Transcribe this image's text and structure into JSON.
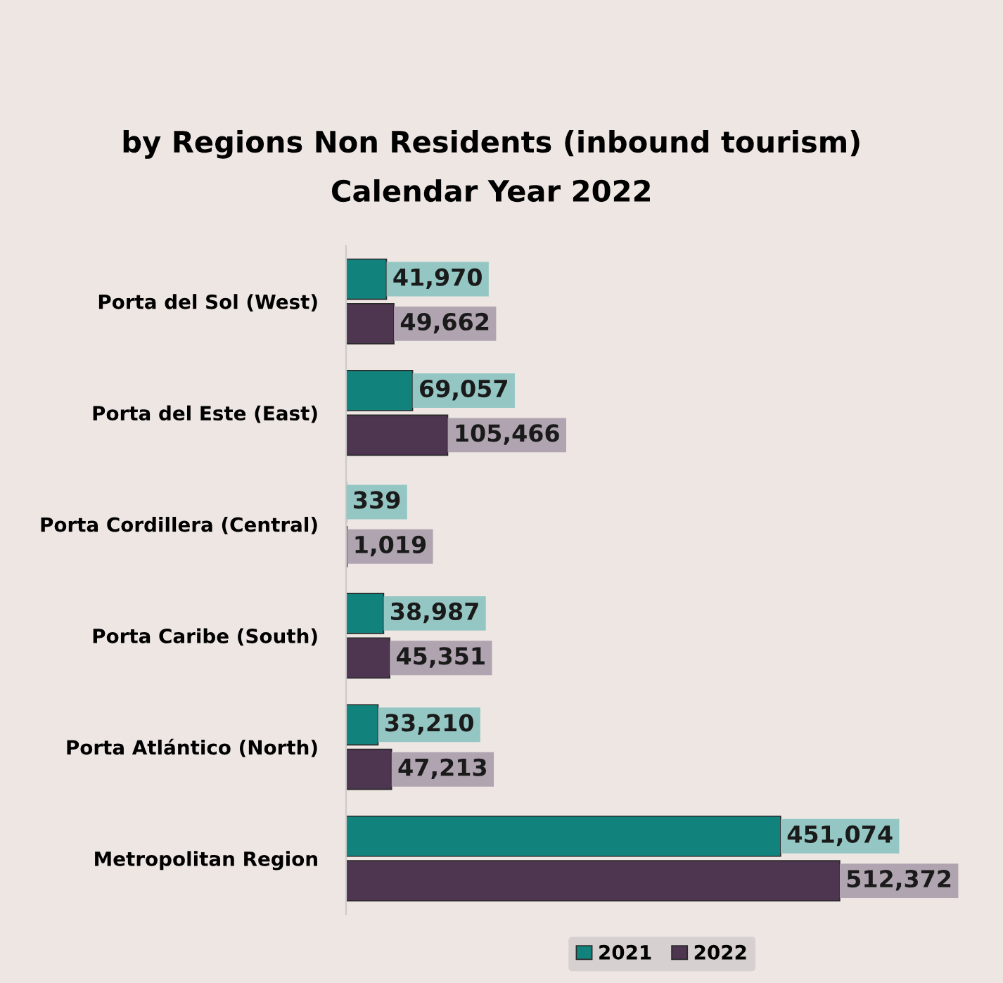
{
  "chart_data": {
    "type": "bar",
    "orientation": "horizontal",
    "title": "by Regions Non Residents (inbound tourism)",
    "subtitle": "Calendar Year 2022",
    "categories": [
      "Porta del Sol (West)",
      "Porta del Este (East)",
      "Porta Cordillera (Central)",
      "Porta Caribe (South)",
      "Porta Atlántico (North)",
      "Metropolitan Region"
    ],
    "series": [
      {
        "name": "2021",
        "color": "#12827c",
        "values": [
          41970,
          69057,
          339,
          38987,
          33210,
          451074
        ],
        "value_labels": [
          "41,970",
          "69,057",
          "339",
          "38,987",
          "33,210",
          "451,074"
        ]
      },
      {
        "name": "2022",
        "color": "#4e3550",
        "values": [
          49662,
          105466,
          1019,
          45351,
          47213,
          512372
        ],
        "value_labels": [
          "49,662",
          "105,466",
          "1,019",
          "45,351",
          "47,213",
          "512,372"
        ]
      }
    ],
    "legend": "bottom",
    "grid": false
  }
}
